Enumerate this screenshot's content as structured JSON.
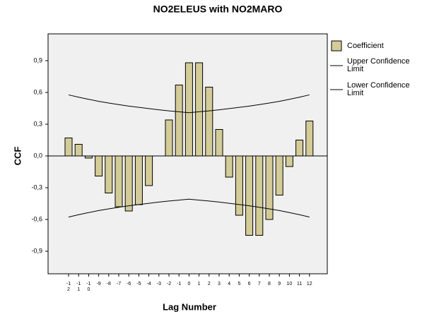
{
  "chart_data": {
    "type": "bar",
    "title": "NO2ELEUS with NO2MARO",
    "xlabel": "Lag Number",
    "ylabel": "CCF",
    "categories": [
      "-12",
      "-11",
      "-10",
      "-9",
      "-8",
      "-7",
      "-6",
      "-5",
      "-4",
      "-3",
      "-2",
      "-1",
      "0",
      "1",
      "2",
      "3",
      "4",
      "5",
      "6",
      "7",
      "8",
      "9",
      "10",
      "11",
      "12"
    ],
    "series": [
      {
        "name": "Coefficient",
        "type": "bar",
        "color": "#d3cc98",
        "values": [
          0.17,
          0.11,
          -0.02,
          -0.19,
          -0.35,
          -0.48,
          -0.52,
          -0.46,
          -0.28,
          0.0,
          0.34,
          0.67,
          0.88,
          0.88,
          0.65,
          0.25,
          -0.2,
          -0.56,
          -0.75,
          -0.75,
          -0.6,
          -0.37,
          -0.1,
          0.15,
          0.33
        ]
      },
      {
        "name": "Upper Confidence Limit",
        "type": "line",
        "color": "#000000",
        "values": [
          0.577,
          0.555,
          0.535,
          0.516,
          0.5,
          0.485,
          0.471,
          0.459,
          0.447,
          0.436,
          0.426,
          0.417,
          0.408,
          0.417,
          0.426,
          0.436,
          0.447,
          0.459,
          0.471,
          0.485,
          0.5,
          0.516,
          0.535,
          0.555,
          0.577
        ]
      },
      {
        "name": "Lower Confidence Limit",
        "type": "line",
        "color": "#000000",
        "values": [
          -0.577,
          -0.555,
          -0.535,
          -0.516,
          -0.5,
          -0.485,
          -0.471,
          -0.459,
          -0.447,
          -0.436,
          -0.426,
          -0.417,
          -0.408,
          -0.417,
          -0.426,
          -0.436,
          -0.447,
          -0.459,
          -0.471,
          -0.485,
          -0.5,
          -0.516,
          -0.535,
          -0.555,
          -0.577
        ]
      }
    ],
    "ylim": [
      -1.113,
      1.153
    ],
    "yticks": [
      {
        "value": -0.9,
        "label": "-0,9"
      },
      {
        "value": -0.6,
        "label": "-0,6"
      },
      {
        "value": -0.3,
        "label": "-0,3"
      },
      {
        "value": 0,
        "label": "0,0"
      },
      {
        "value": 0.3,
        "label": "0,3"
      },
      {
        "value": 0.6,
        "label": "0,6"
      },
      {
        "value": 0.9,
        "label": "0,9"
      }
    ],
    "legend": "right"
  }
}
